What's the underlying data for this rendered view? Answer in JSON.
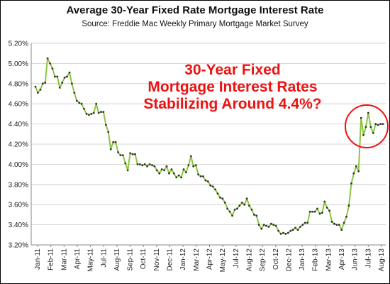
{
  "chart_data": {
    "type": "line",
    "title": "Average 30-Year Fixed Rate Mortgage Interest Rate",
    "subtitle": "Source:  Freddie  Mac Weekly  Primary  Mortgage Market Survey",
    "ylim": [
      3.2,
      5.2
    ],
    "ytick_labels": [
      "5.20%",
      "5.00%",
      "4.80%",
      "4.60%",
      "4.40%",
      "4.20%",
      "4.00%",
      "3.80%",
      "3.60%",
      "3.40%",
      "3.20%"
    ],
    "x_tick_labels": [
      "Jan-11",
      "Feb-11",
      "Mar-11",
      "Apr-11",
      "May-11",
      "Jul-11",
      "Aug-11",
      "Sep-11",
      "Oct-11",
      "Nov-11",
      "Dec-11",
      "Jan-12",
      "Mar-12",
      "Apr-12",
      "May-12",
      "Jul-12",
      "Aug-12",
      "Sep-12",
      "Oct-12",
      "Dec-12",
      "Jan-13",
      "Feb-13",
      "Mar-13",
      "Apr-13",
      "Jun-13",
      "Jul-13",
      "Aug-13"
    ],
    "grid": true,
    "line_color": "#8cc63f",
    "marker_color": "#333333",
    "series": [
      {
        "values": [
          4.77,
          4.71,
          4.74,
          4.8,
          4.81,
          5.05,
          5.0,
          4.95,
          4.87,
          4.87,
          4.76,
          4.81,
          4.86,
          4.87,
          4.91,
          4.8,
          4.71,
          4.63,
          4.61,
          4.6,
          4.55,
          4.5,
          4.49,
          4.5,
          4.51,
          4.6,
          4.51,
          4.52,
          4.52,
          4.39,
          4.32,
          4.15,
          4.22,
          4.22,
          4.12,
          4.09,
          4.09,
          4.01,
          3.94,
          4.11,
          4.1,
          4.1,
          4.0,
          4.0,
          3.99,
          4.0,
          3.98,
          4.0,
          3.99,
          3.98,
          3.94,
          3.91,
          3.95,
          3.94,
          3.98,
          3.91,
          3.95,
          3.91,
          3.87,
          3.89,
          3.87,
          3.95,
          3.92,
          3.99,
          4.08,
          3.98,
          3.99,
          3.9,
          3.88,
          3.88,
          3.84,
          3.83,
          3.79,
          3.78,
          3.75,
          3.71,
          3.67,
          3.66,
          3.62,
          3.56,
          3.53,
          3.49,
          3.55,
          3.56,
          3.59,
          3.62,
          3.6,
          3.66,
          3.59,
          3.55,
          3.5,
          3.49,
          3.4,
          3.36,
          3.4,
          3.39,
          3.38,
          3.41,
          3.4,
          3.39,
          3.34,
          3.31,
          3.32,
          3.31,
          3.32,
          3.34,
          3.35,
          3.37,
          3.35,
          3.38,
          3.4,
          3.42,
          3.42,
          3.53,
          3.53,
          3.53,
          3.56,
          3.51,
          3.52,
          3.63,
          3.57,
          3.54,
          3.43,
          3.41,
          3.4,
          3.4,
          3.35,
          3.42,
          3.48,
          3.59,
          3.81,
          3.91,
          3.98,
          3.93,
          4.46,
          4.29,
          4.37,
          4.51,
          4.37,
          4.31,
          4.4,
          4.39,
          4.4,
          4.4
        ]
      }
    ],
    "annotation": {
      "lines": [
        "30-Year Fixed",
        "Mortgage Interest Rates",
        "Stabilizing Around 4.4%?"
      ],
      "color": "#ee1111"
    }
  }
}
